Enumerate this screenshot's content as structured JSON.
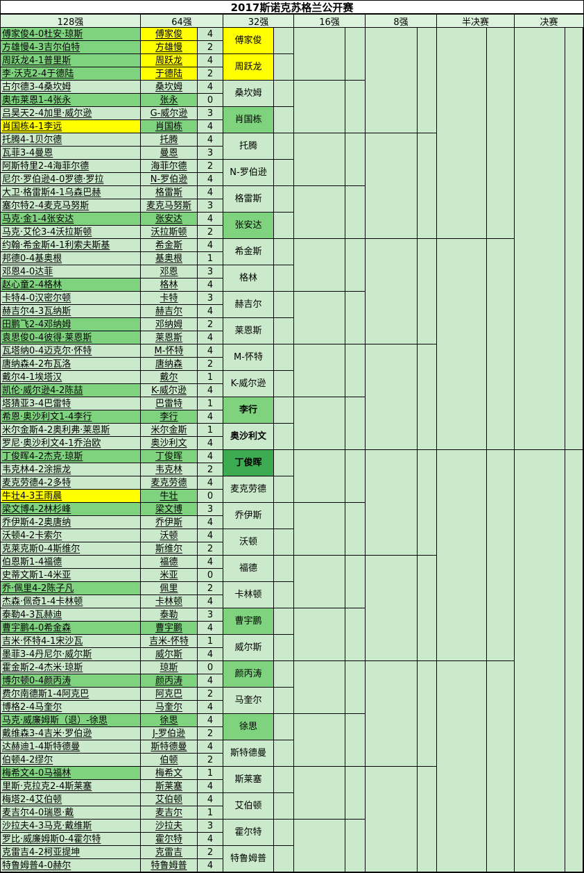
{
  "title": "2017斯诺克苏格兰公开赛",
  "columns": [
    "128强",
    "64强",
    "32强",
    "16强",
    "8强",
    "半决赛",
    "决赛"
  ],
  "colors": {
    "cell_light_green": "#CBE9CB",
    "highlight_green": "#7FD37F",
    "highlight_yellow": "#FFFF00",
    "winner_dark_green": "#3DAB51",
    "header_bg": "#DCF2DC",
    "title_bg": "#FFFFFF",
    "grid_line": "#000000"
  },
  "rows": [
    {
      "match": "傅家俊4-0杜安·琼斯",
      "match_color": "green",
      "winner": "傅家俊",
      "winner_color": "yellow",
      "score": "4"
    },
    {
      "match": "方雄慢4-3吉尔伯特",
      "match_color": "green",
      "winner": "方雄慢",
      "winner_color": "yellow",
      "score": "2"
    },
    {
      "match": "周跃龙4-1普里斯",
      "match_color": "green",
      "winner": "周跃龙",
      "winner_color": "yellow",
      "score": "4"
    },
    {
      "match": "李·沃克2-4于德陆",
      "match_color": "green",
      "winner": "于德陆",
      "winner_color": "yellow",
      "score": "2"
    },
    {
      "match": "古尔德3-4桑坎姆",
      "match_color": "light",
      "winner": "桑坎姆",
      "winner_color": "light",
      "score": "4"
    },
    {
      "match": "奥布莱恩1-4张永",
      "match_color": "green",
      "winner": "张永",
      "winner_color": "green",
      "score": "0"
    },
    {
      "match": "吕昊天2-4加里·威尔逊",
      "match_color": "light",
      "winner": "G-威尔逊",
      "winner_color": "light",
      "score": "3"
    },
    {
      "match": "肖国栋4-1李远",
      "match_color": "yellow",
      "winner": "肖国栋",
      "winner_color": "green",
      "score": "4"
    },
    {
      "match": "托腾4-1贝尔德",
      "match_color": "light",
      "winner": "托腾",
      "winner_color": "light",
      "score": "4"
    },
    {
      "match": "瓦菲3-4曼恩",
      "match_color": "light",
      "winner": "曼恩",
      "winner_color": "light",
      "score": "3"
    },
    {
      "match": "阿斯特里2-4海菲尔德",
      "match_color": "light",
      "winner": "海菲尔德",
      "winner_color": "light",
      "score": "2"
    },
    {
      "match": "尼尔·罗伯逊4-0罗德·罗拉",
      "match_color": "light",
      "winner": "N-罗伯逊",
      "winner_color": "light",
      "score": "4"
    },
    {
      "match": "大卫·格雷斯4-1乌森巴赫",
      "match_color": "light",
      "winner": "格雷斯",
      "winner_color": "light",
      "score": "4"
    },
    {
      "match": "塞尔特2-4麦克马努斯",
      "match_color": "light",
      "winner": "麦克马努斯",
      "winner_color": "light",
      "score": "3"
    },
    {
      "match": "马克·金1-4张安达",
      "match_color": "green",
      "winner": "张安达",
      "winner_color": "green",
      "score": "4"
    },
    {
      "match": "马克·艾伦3-4沃拉斯顿",
      "match_color": "light",
      "winner": "沃拉斯顿",
      "winner_color": "light",
      "score": "2"
    },
    {
      "match": "约翰·希金斯4-1利索夫斯基",
      "match_color": "light",
      "winner": "希金斯",
      "winner_color": "light",
      "score": "4"
    },
    {
      "match": "邦德0-4基奥根",
      "match_color": "light",
      "winner": "基奥根",
      "winner_color": "light",
      "score": "1"
    },
    {
      "match": "邓恩4-0达菲",
      "match_color": "light",
      "winner": "邓恩",
      "winner_color": "light",
      "score": "3"
    },
    {
      "match": "赵心童2-4格林",
      "match_color": "green",
      "winner": "格林",
      "winner_color": "light",
      "score": "4"
    },
    {
      "match": "卡特4-0汉密尔顿",
      "match_color": "light",
      "winner": "卡特",
      "winner_color": "light",
      "score": "3"
    },
    {
      "match": "赫吉尔4-3瓦纳斯",
      "match_color": "light",
      "winner": "赫吉尔",
      "winner_color": "light",
      "score": "4"
    },
    {
      "match": "田鹏飞2-4邓纳姆",
      "match_color": "green",
      "winner": "邓纳姆",
      "winner_color": "light",
      "score": "2"
    },
    {
      "match": "袁思俊0-4彼得·莱恩斯",
      "match_color": "green",
      "winner": "莱恩斯",
      "winner_color": "light",
      "score": "4"
    },
    {
      "match": "瓦塔纳0-4迈克尔·怀特",
      "match_color": "light",
      "winner": "M-怀特",
      "winner_color": "light",
      "score": "4"
    },
    {
      "match": "唐纳森4-2布瓦洛",
      "match_color": "light",
      "winner": "唐纳森",
      "winner_color": "light",
      "score": "2"
    },
    {
      "match": "戴尔4-1埃塔汉",
      "match_color": "light",
      "winner": "戴尔",
      "winner_color": "light",
      "score": "1"
    },
    {
      "match": "凯伦·威尔逊4-2陈喆",
      "match_color": "green",
      "winner": "K-威尔逊",
      "winner_color": "light",
      "score": "4"
    },
    {
      "match": "塔猜亚3-4巴雷特",
      "match_color": "light",
      "winner": "巴雷特",
      "winner_color": "light",
      "score": "1"
    },
    {
      "match": "希恩·奥沙利文1-4李行",
      "match_color": "green",
      "winner": "李行",
      "winner_color": "green",
      "score": "4"
    },
    {
      "match": "米尔金斯4-2奥利弗·莱恩斯",
      "match_color": "light",
      "winner": "米尔金斯",
      "winner_color": "light",
      "score": "1"
    },
    {
      "match": "罗尼·奥沙利文4-1乔治欧",
      "match_color": "light",
      "winner": "奥沙利文",
      "winner_color": "light",
      "score": "4"
    },
    {
      "match": "丁俊晖4-2杰克·琼斯",
      "match_color": "green",
      "winner": "丁俊晖",
      "winner_color": "green",
      "score": "4"
    },
    {
      "match": "韦克林4-2涂振龙",
      "match_color": "light",
      "winner": "韦克林",
      "winner_color": "light",
      "score": "2"
    },
    {
      "match": "麦克劳德4-2多特",
      "match_color": "light",
      "winner": "麦克劳德",
      "winner_color": "light",
      "score": "4"
    },
    {
      "match": "牛壮4-3王雨晨",
      "match_color": "yellow",
      "winner": "牛壮",
      "winner_color": "green",
      "score": "0"
    },
    {
      "match": "梁文博4-2林杉峰",
      "match_color": "green",
      "winner": "梁文博",
      "winner_color": "green",
      "score": "3"
    },
    {
      "match": "乔伊斯4-2奥唐纳",
      "match_color": "light",
      "winner": "乔伊斯",
      "winner_color": "light",
      "score": "4"
    },
    {
      "match": "沃顿4-2卡索尔",
      "match_color": "light",
      "winner": "沃顿",
      "winner_color": "light",
      "score": "4"
    },
    {
      "match": "克莱克斯0-4斯维尔",
      "match_color": "light",
      "winner": "斯维尔",
      "winner_color": "light",
      "score": "2"
    },
    {
      "match": "伯恩斯1-4福德",
      "match_color": "light",
      "winner": "福德",
      "winner_color": "light",
      "score": "4"
    },
    {
      "match": "史蒂文斯1-4米亚",
      "match_color": "light",
      "winner": "米亚",
      "winner_color": "light",
      "score": "0"
    },
    {
      "match": "乔·佩里4-2陈子凡",
      "match_color": "green",
      "winner": "佩里",
      "winner_color": "light",
      "score": "2"
    },
    {
      "match": "杰森·佩奇1-4卡林顿",
      "match_color": "light",
      "winner": "卡林顿",
      "winner_color": "light",
      "score": "4"
    },
    {
      "match": "泰勒4-3瓦赫迪",
      "match_color": "light",
      "winner": "泰勒",
      "winner_color": "light",
      "score": "3"
    },
    {
      "match": "曹宇鹏4-0希金森",
      "match_color": "green",
      "winner": "曹宇鹏",
      "winner_color": "green",
      "score": "4"
    },
    {
      "match": "吉米·怀特4-1宋沙瓦",
      "match_color": "light",
      "winner": "吉米-怀特",
      "winner_color": "light",
      "score": "1"
    },
    {
      "match": "墨菲3-4丹尼尔·威尔斯",
      "match_color": "light",
      "winner": "威尔斯",
      "winner_color": "light",
      "score": "4"
    },
    {
      "match": "霍金斯2-4杰米·琼斯",
      "match_color": "light",
      "winner": "琼斯",
      "winner_color": "light",
      "score": "0"
    },
    {
      "match": "博尔顿0-4颜丙涛",
      "match_color": "green",
      "winner": "颜丙涛",
      "winner_color": "green",
      "score": "4"
    },
    {
      "match": "费尔南德斯1-4阿克巴",
      "match_color": "light",
      "winner": "阿克巴",
      "winner_color": "light",
      "score": "2"
    },
    {
      "match": "博格2-4马奎尔",
      "match_color": "light",
      "winner": "马奎尔",
      "winner_color": "light",
      "score": "4"
    },
    {
      "match": "马克·威廉姆斯（退）-徐思",
      "match_color": "green",
      "winner": "徐思",
      "winner_color": "green",
      "score": "4"
    },
    {
      "match": "戴维森3-4吉米·罗伯逊",
      "match_color": "light",
      "winner": "J-罗伯逊",
      "winner_color": "light",
      "score": "2"
    },
    {
      "match": "达赫迪1-4斯特德曼",
      "match_color": "light",
      "winner": "斯特德曼",
      "winner_color": "light",
      "score": "4"
    },
    {
      "match": "伯顿4-2缪尔",
      "match_color": "light",
      "winner": "伯顿",
      "winner_color": "light",
      "score": "2"
    },
    {
      "match": "梅希文4-0马福林",
      "match_color": "green",
      "winner": "梅希文",
      "winner_color": "light",
      "score": "1"
    },
    {
      "match": "里斯·克拉克2-4斯莱塞",
      "match_color": "light",
      "winner": "斯莱塞",
      "winner_color": "light",
      "score": "4"
    },
    {
      "match": "梅塔2-4艾伯顿",
      "match_color": "light",
      "winner": "艾伯顿",
      "winner_color": "light",
      "score": "4"
    },
    {
      "match": "麦吉尔4-0瑞恩·戴",
      "match_color": "light",
      "winner": "麦吉尔",
      "winner_color": "light",
      "score": "1"
    },
    {
      "match": "沙拉夫4-3马克·戴维斯",
      "match_color": "light",
      "winner": "沙拉夫",
      "winner_color": "light",
      "score": "3"
    },
    {
      "match": "罗比·威廉姆斯0-4霍尔特",
      "match_color": "light",
      "winner": "霍尔特",
      "winner_color": "light",
      "score": "4"
    },
    {
      "match": "克雷吉4-2柯亚提坤",
      "match_color": "light",
      "winner": "克雷吉",
      "winner_color": "light",
      "score": "2"
    },
    {
      "match": "特鲁姆普4-0赫尔",
      "match_color": "light",
      "winner": "特鲁姆普",
      "winner_color": "light",
      "score": "4"
    }
  ],
  "round32": [
    {
      "name": "傅家俊",
      "color": "yellow",
      "bold": false
    },
    {
      "name": "周跃龙",
      "color": "yellow",
      "bold": false
    },
    {
      "name": "桑坎姆",
      "color": "light",
      "bold": false
    },
    {
      "name": "肖国栋",
      "color": "green",
      "bold": false
    },
    {
      "name": "托腾",
      "color": "light",
      "bold": false
    },
    {
      "name": "N-罗伯逊",
      "color": "light",
      "bold": false
    },
    {
      "name": "格雷斯",
      "color": "light",
      "bold": false
    },
    {
      "name": "张安达",
      "color": "green",
      "bold": false
    },
    {
      "name": "希金斯",
      "color": "light",
      "bold": false
    },
    {
      "name": "格林",
      "color": "light",
      "bold": false
    },
    {
      "name": "赫吉尔",
      "color": "light",
      "bold": false
    },
    {
      "name": "莱恩斯",
      "color": "light",
      "bold": false
    },
    {
      "name": "M-怀特",
      "color": "light",
      "bold": false
    },
    {
      "name": "K-威尔逊",
      "color": "light",
      "bold": false
    },
    {
      "name": "李行",
      "color": "green",
      "bold": true
    },
    {
      "name": "奥沙利文",
      "color": "light",
      "bold": true
    },
    {
      "name": "丁俊晖",
      "color": "dark",
      "bold": true
    },
    {
      "name": "麦克劳德",
      "color": "light",
      "bold": false
    },
    {
      "name": "乔伊斯",
      "color": "light",
      "bold": false
    },
    {
      "name": "沃顿",
      "color": "light",
      "bold": false
    },
    {
      "name": "福德",
      "color": "light",
      "bold": false
    },
    {
      "name": "卡林顿",
      "color": "light",
      "bold": false
    },
    {
      "name": "曹宇鹏",
      "color": "green",
      "bold": false
    },
    {
      "name": "威尔斯",
      "color": "light",
      "bold": false
    },
    {
      "name": "颜丙涛",
      "color": "green",
      "bold": false
    },
    {
      "name": "马奎尔",
      "color": "light",
      "bold": false
    },
    {
      "name": "徐思",
      "color": "green",
      "bold": false
    },
    {
      "name": "斯特德曼",
      "color": "light",
      "bold": false
    },
    {
      "name": "斯莱塞",
      "color": "light",
      "bold": false
    },
    {
      "name": "艾伯顿",
      "color": "light",
      "bold": false
    },
    {
      "name": "霍尔特",
      "color": "light",
      "bold": false
    },
    {
      "name": "特鲁姆普",
      "color": "light",
      "bold": false
    }
  ]
}
